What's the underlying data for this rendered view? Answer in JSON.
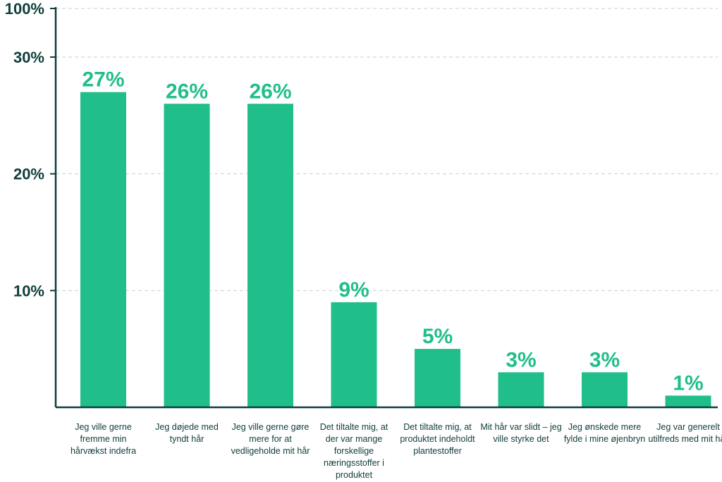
{
  "colors": {
    "bar": "#20be8a",
    "label": "#20be8a",
    "axis": "#0f3d3b",
    "grid": "#c9cfcf"
  },
  "chart_data": {
    "type": "bar",
    "ytick_labels": [
      "10%",
      "20%",
      "30%",
      "100%"
    ],
    "categories": [
      "Jeg ville gerne fremme min hårvækst indefra",
      "Jeg døjede med tyndt hår",
      "Jeg ville gerne gøre mere for at vedligeholde mit hår",
      "Det tiltalte mig, at der var mange forskellige næringsstoffer i produktet",
      "Det tiltalte mig, at produktet indeholdt plantestoffer",
      "Mit hår var slidt – jeg ville styrke det",
      "Jeg ønskede mere fylde i mine øjenbryn",
      "Jeg var generelt utilfreds med mit hår"
    ],
    "values": [
      27,
      26,
      26,
      9,
      5,
      3,
      3,
      1
    ],
    "value_labels": [
      "27%",
      "26%",
      "26%",
      "9%",
      "5%",
      "3%",
      "3%",
      "1%"
    ],
    "grid": true
  }
}
